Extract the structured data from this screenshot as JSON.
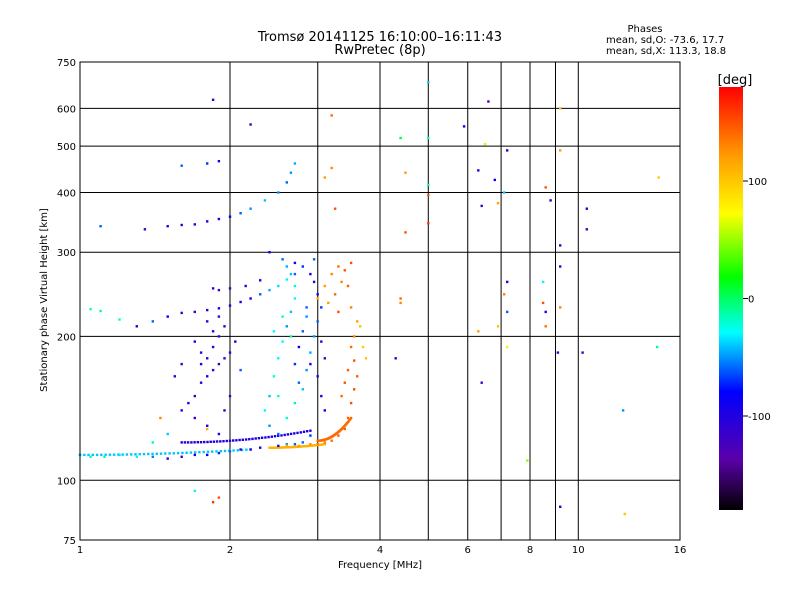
{
  "chart_data": {
    "type": "scatter",
    "title": "Tromsø 20141125 16:10:00–16:11:43",
    "subtitle": "RwPretec (8p)",
    "xlabel": "Frequency [MHz]",
    "ylabel": "Stationary phase Virtual Height [km]",
    "x_scale": "log",
    "y_scale": "log",
    "xlim": [
      1,
      16
    ],
    "ylim": [
      75,
      750
    ],
    "x_ticks": [
      1,
      2,
      4,
      6,
      8,
      10,
      16
    ],
    "x_minor_grid": [
      3,
      5,
      7,
      9
    ],
    "y_ticks": [
      75,
      100,
      200,
      300,
      400,
      500,
      600,
      750
    ],
    "grid": true,
    "legend": {
      "heading": "Phases",
      "line_o": "mean, sd,O: -73.6, 17.7",
      "line_x": "mean, sd,X: 113.3, 18.8"
    },
    "colorbar": {
      "label": "[deg]",
      "ticks": [
        100,
        0,
        -100
      ],
      "range": [
        -180,
        180
      ],
      "placement": "right"
    },
    "traces": [
      {
        "f0": 1.0,
        "f1": 2.2,
        "h0": 113,
        "h1": 116,
        "phase": -40
      },
      {
        "f0": 1.6,
        "f1": 2.9,
        "h0": 120,
        "h1": 127,
        "phase": -100
      },
      {
        "f0": 2.4,
        "f1": 3.1,
        "h0": 117,
        "h1": 119,
        "phase": 110
      },
      {
        "f0": 3.0,
        "f1": 3.5,
        "h0": 121,
        "h1": 135,
        "phase": 140
      }
    ],
    "points": [
      [
        1.0,
        113,
        -40
      ],
      [
        1.05,
        112,
        -20
      ],
      [
        1.12,
        112,
        -15
      ],
      [
        1.2,
        113,
        -35
      ],
      [
        1.3,
        112,
        -25
      ],
      [
        1.4,
        112,
        -55
      ],
      [
        1.5,
        111,
        -110
      ],
      [
        1.6,
        112,
        -120
      ],
      [
        1.7,
        113,
        -95
      ],
      [
        1.8,
        113,
        -80
      ],
      [
        1.9,
        114,
        -70
      ],
      [
        2.0,
        115,
        -60
      ],
      [
        2.1,
        116,
        -110
      ],
      [
        2.2,
        116,
        -100
      ],
      [
        2.3,
        117,
        -90
      ],
      [
        2.5,
        118,
        -100
      ],
      [
        2.6,
        119,
        -50
      ],
      [
        2.7,
        119,
        -60
      ],
      [
        2.8,
        120,
        -60
      ],
      [
        2.9,
        124,
        -70
      ],
      [
        2.45,
        117,
        110
      ],
      [
        2.6,
        118,
        115
      ],
      [
        2.75,
        118,
        120
      ],
      [
        2.9,
        119,
        125
      ],
      [
        3.0,
        119,
        130
      ],
      [
        3.1,
        120,
        130
      ],
      [
        3.2,
        121,
        140
      ],
      [
        3.3,
        124,
        145
      ],
      [
        3.4,
        128,
        145
      ],
      [
        3.45,
        135,
        140
      ],
      [
        3.5,
        145,
        150
      ],
      [
        3.55,
        155,
        150
      ],
      [
        3.6,
        165,
        145
      ],
      [
        3.55,
        178,
        150
      ],
      [
        3.5,
        190,
        140
      ],
      [
        3.55,
        200,
        130
      ],
      [
        3.6,
        215,
        120
      ],
      [
        3.5,
        230,
        130
      ],
      [
        3.45,
        255,
        145
      ],
      [
        3.4,
        275,
        150
      ],
      [
        3.3,
        280,
        140
      ],
      [
        3.2,
        270,
        130
      ],
      [
        3.1,
        255,
        120
      ],
      [
        3.0,
        240,
        115
      ],
      [
        3.65,
        210,
        100
      ],
      [
        3.7,
        190,
        95
      ],
      [
        3.75,
        180,
        100
      ],
      [
        3.4,
        160,
        150
      ],
      [
        3.45,
        170,
        145
      ],
      [
        3.35,
        150,
        140
      ],
      [
        1.05,
        228,
        -20
      ],
      [
        1.1,
        226,
        -15
      ],
      [
        1.2,
        217,
        -20
      ],
      [
        1.3,
        210,
        -100
      ],
      [
        1.4,
        215,
        -60
      ],
      [
        1.5,
        220,
        -80
      ],
      [
        1.6,
        224,
        -110
      ],
      [
        1.7,
        225,
        -120
      ],
      [
        1.8,
        227,
        -110
      ],
      [
        1.9,
        229,
        -100
      ],
      [
        2.0,
        232,
        -110
      ],
      [
        2.1,
        236,
        -100
      ],
      [
        2.2,
        240,
        -80
      ],
      [
        2.3,
        245,
        -60
      ],
      [
        2.4,
        250,
        -45
      ],
      [
        2.5,
        255,
        -35
      ],
      [
        2.6,
        263,
        -30
      ],
      [
        2.7,
        270,
        -60
      ],
      [
        2.8,
        280,
        -70
      ],
      [
        2.95,
        290,
        -60
      ],
      [
        2.3,
        262,
        -100
      ],
      [
        2.15,
        255,
        -110
      ],
      [
        2.0,
        252,
        -120
      ],
      [
        1.9,
        250,
        -125
      ],
      [
        1.85,
        252,
        -110
      ],
      [
        1.5,
        340,
        -100
      ],
      [
        1.6,
        342,
        -110
      ],
      [
        1.7,
        343,
        -105
      ],
      [
        1.8,
        348,
        -100
      ],
      [
        1.9,
        352,
        -90
      ],
      [
        2.0,
        356,
        -80
      ],
      [
        2.1,
        362,
        -60
      ],
      [
        2.2,
        370,
        -50
      ],
      [
        2.35,
        385,
        -40
      ],
      [
        2.5,
        400,
        -50
      ],
      [
        2.6,
        420,
        -60
      ],
      [
        2.65,
        440,
        -50
      ],
      [
        2.7,
        460,
        -45
      ],
      [
        1.8,
        460,
        -70
      ],
      [
        1.9,
        465,
        -90
      ],
      [
        1.35,
        335,
        -110
      ],
      [
        1.1,
        340,
        -60
      ],
      [
        1.6,
        455,
        -60
      ],
      [
        1.85,
        625,
        -110
      ],
      [
        2.2,
        555,
        -120
      ],
      [
        2.55,
        290,
        -60
      ],
      [
        2.6,
        280,
        -45
      ],
      [
        2.65,
        270,
        -40
      ],
      [
        2.7,
        255,
        -20
      ],
      [
        2.7,
        240,
        -30
      ],
      [
        2.65,
        225,
        -40
      ],
      [
        2.6,
        210,
        -50
      ],
      [
        2.55,
        195,
        -30
      ],
      [
        2.5,
        180,
        -25
      ],
      [
        2.45,
        165,
        -20
      ],
      [
        2.4,
        150,
        -40
      ],
      [
        2.35,
        140,
        -30
      ],
      [
        2.4,
        130,
        -50
      ],
      [
        2.5,
        125,
        -60
      ],
      [
        2.6,
        135,
        -20
      ],
      [
        2.7,
        145,
        -10
      ],
      [
        2.8,
        155,
        -40
      ],
      [
        2.85,
        170,
        -50
      ],
      [
        2.9,
        185,
        -45
      ],
      [
        2.95,
        200,
        -50
      ],
      [
        3.0,
        215,
        -60
      ],
      [
        3.05,
        230,
        -70
      ],
      [
        3.0,
        245,
        -100
      ],
      [
        2.95,
        260,
        -110
      ],
      [
        2.9,
        270,
        -100
      ],
      [
        2.75,
        160,
        -60
      ],
      [
        2.7,
        175,
        -70
      ],
      [
        2.75,
        190,
        -80
      ],
      [
        2.8,
        205,
        -60
      ],
      [
        2.85,
        220,
        -50
      ],
      [
        3.05,
        195,
        -110
      ],
      [
        3.1,
        180,
        -120
      ],
      [
        3.0,
        165,
        -110
      ],
      [
        3.05,
        150,
        -100
      ],
      [
        3.1,
        140,
        -90
      ],
      [
        1.7,
        150,
        -120
      ],
      [
        1.75,
        160,
        -110
      ],
      [
        1.8,
        165,
        -100
      ],
      [
        1.85,
        170,
        -110
      ],
      [
        1.9,
        175,
        -120
      ],
      [
        1.95,
        180,
        -115
      ],
      [
        2.0,
        185,
        -110
      ],
      [
        1.8,
        180,
        -120
      ],
      [
        1.75,
        175,
        -100
      ],
      [
        1.85,
        190,
        -110
      ],
      [
        1.9,
        200,
        -120
      ],
      [
        1.95,
        210,
        -110
      ],
      [
        1.85,
        205,
        -100
      ],
      [
        1.8,
        215,
        -110
      ],
      [
        1.9,
        220,
        -120
      ],
      [
        1.7,
        195,
        -100
      ],
      [
        1.75,
        185,
        -110
      ],
      [
        1.6,
        140,
        -110
      ],
      [
        1.65,
        145,
        -100
      ],
      [
        1.7,
        135,
        -120
      ],
      [
        1.8,
        130,
        -110
      ],
      [
        1.9,
        125,
        -100
      ],
      [
        1.95,
        140,
        -110
      ],
      [
        2.0,
        150,
        -120
      ],
      [
        1.55,
        165,
        -110
      ],
      [
        1.6,
        175,
        -120
      ],
      [
        2.05,
        195,
        -100
      ],
      [
        2.1,
        170,
        -60
      ],
      [
        1.8,
        128,
        110
      ],
      [
        1.85,
        90,
        160
      ],
      [
        1.7,
        95,
        -30
      ],
      [
        1.9,
        92,
        150
      ],
      [
        1.5,
        125,
        -40
      ],
      [
        1.4,
        120,
        -10
      ],
      [
        1.45,
        135,
        130
      ],
      [
        3.2,
        580,
        140
      ],
      [
        3.2,
        450,
        130
      ],
      [
        3.25,
        370,
        150
      ],
      [
        3.1,
        430,
        120
      ],
      [
        4.4,
        520,
        10
      ],
      [
        4.5,
        440,
        120
      ],
      [
        4.5,
        330,
        150
      ],
      [
        4.4,
        240,
        140
      ],
      [
        4.4,
        235,
        130
      ],
      [
        4.3,
        180,
        -100
      ],
      [
        5.0,
        680,
        -40
      ],
      [
        5.0,
        520,
        -20
      ],
      [
        5.0,
        415,
        -10
      ],
      [
        5.0,
        395,
        150
      ],
      [
        5.0,
        345,
        160
      ],
      [
        5.9,
        550,
        -90
      ],
      [
        6.3,
        445,
        -100
      ],
      [
        6.4,
        375,
        -120
      ],
      [
        6.3,
        205,
        120
      ],
      [
        6.4,
        160,
        -120
      ],
      [
        6.6,
        620,
        -130
      ],
      [
        6.5,
        505,
        60
      ],
      [
        6.8,
        425,
        -80
      ],
      [
        6.9,
        380,
        120
      ],
      [
        6.9,
        210,
        100
      ],
      [
        7.2,
        490,
        -100
      ],
      [
        7.1,
        400,
        -40
      ],
      [
        7.2,
        260,
        -100
      ],
      [
        7.1,
        245,
        130
      ],
      [
        7.2,
        225,
        -60
      ],
      [
        7.2,
        190,
        80
      ],
      [
        7.9,
        110,
        50
      ],
      [
        8.6,
        410,
        150
      ],
      [
        8.5,
        260,
        -30
      ],
      [
        8.5,
        235,
        150
      ],
      [
        8.6,
        225,
        -100
      ],
      [
        8.6,
        210,
        140
      ],
      [
        8.8,
        385,
        -100
      ],
      [
        9.2,
        600,
        100
      ],
      [
        9.2,
        490,
        120
      ],
      [
        9.2,
        310,
        -120
      ],
      [
        9.2,
        280,
        -110
      ],
      [
        9.2,
        230,
        130
      ],
      [
        9.1,
        185,
        -120
      ],
      [
        9.2,
        88,
        -100
      ],
      [
        10.4,
        370,
        -110
      ],
      [
        10.4,
        335,
        -130
      ],
      [
        10.2,
        185,
        -120
      ],
      [
        12.3,
        140,
        -50
      ],
      [
        12.4,
        85,
        100
      ],
      [
        14.5,
        430,
        100
      ],
      [
        14.4,
        190,
        -10
      ],
      [
        2.85,
        230,
        -60
      ],
      [
        2.9,
        175,
        -100
      ],
      [
        2.4,
        300,
        -80
      ],
      [
        2.7,
        285,
        -90
      ],
      [
        2.65,
        200,
        -10
      ],
      [
        2.55,
        220,
        -20
      ],
      [
        2.45,
        205,
        -30
      ],
      [
        2.5,
        150,
        -20
      ],
      [
        3.3,
        225,
        150
      ],
      [
        3.25,
        245,
        140
      ],
      [
        3.35,
        260,
        130
      ],
      [
        3.15,
        235,
        120
      ],
      [
        3.5,
        285,
        150
      ]
    ]
  }
}
